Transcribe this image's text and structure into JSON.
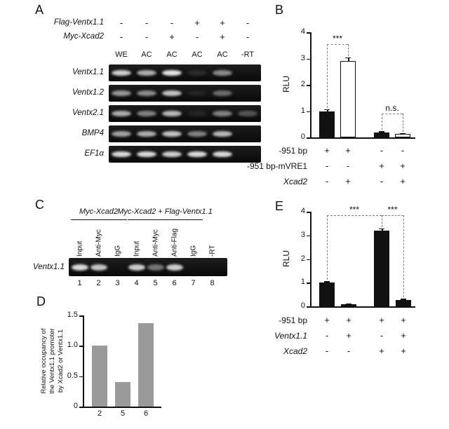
{
  "figure": {
    "panels": {
      "A": {
        "label": "A",
        "condition_rows": [
          {
            "label": "Flag-Ventx1.1",
            "values": [
              "-",
              "-",
              "-",
              "+",
              "+",
              "-"
            ]
          },
          {
            "label": "Myc-Xcad2",
            "values": [
              "-",
              "-",
              "+",
              "-",
              "+",
              "-"
            ]
          }
        ],
        "lane_labels": [
          "WE",
          "AC",
          "AC",
          "AC",
          "AC",
          "-RT"
        ],
        "gel_rows": [
          {
            "label": "Ventx1.1",
            "bands": [
              0.85,
              0.7,
              0.95,
              0.1,
              0.55,
              0
            ]
          },
          {
            "label": "Ventx1.2",
            "bands": [
              0.6,
              0.55,
              0.8,
              0.07,
              0.4,
              0
            ]
          },
          {
            "label": "Ventx2.1",
            "bands": [
              0.7,
              0.5,
              0.75,
              0.08,
              0.5,
              0.3
            ]
          },
          {
            "label": "BMP4",
            "bands": [
              0.65,
              0.7,
              0.8,
              0.5,
              0.75,
              0
            ]
          },
          {
            "label": "EF1α",
            "bands": [
              0.9,
              0.9,
              0.85,
              0.9,
              0.9,
              0
            ]
          }
        ]
      },
      "B": {
        "label": "B"
      },
      "C": {
        "label": "C",
        "groups": [
          {
            "label": "Myc-Xcad2",
            "from": 0,
            "to": 2
          },
          {
            "label": "Myc-Xcad2 + Flag-Ventx1.1",
            "from": 3,
            "to": 6
          }
        ],
        "lane_labels": [
          "Input",
          "Anti-Myc",
          "IgG",
          "Input",
          "Anti-Myc",
          "Anti-Flag",
          "IgG",
          "-RT"
        ],
        "gel_row": {
          "label": "Ventx1.1",
          "bands": [
            0.9,
            0.8,
            0,
            0.85,
            0.45,
            0.85,
            0,
            0
          ]
        },
        "lane_numbers": [
          "1",
          "2",
          "3",
          "4",
          "5",
          "6",
          "7",
          "8"
        ]
      },
      "D": {
        "label": "D"
      },
      "E": {
        "label": "E"
      }
    }
  },
  "chart_data": [
    {
      "id": "B",
      "type": "bar",
      "title": "",
      "ylabel": "RLU",
      "ylim": [
        0,
        4
      ],
      "yticks": [
        0,
        1,
        2,
        3,
        4
      ],
      "ytick_labels": [
        "0",
        "1",
        "2",
        "3",
        "4"
      ],
      "values": [
        1.0,
        2.9,
        0.2,
        0.13
      ],
      "errors": [
        0.08,
        0.15,
        0.04,
        0.03
      ],
      "bar_colors": [
        "#111111",
        "#ffffff",
        "#111111",
        "#ffffff"
      ],
      "bar_border": "#111111",
      "significance": [
        {
          "label": "***",
          "from": 0,
          "to": 1,
          "y": 3.55
        },
        {
          "label": "n.s.",
          "from": 2,
          "to": 3,
          "y": 0.9
        }
      ],
      "condition_rows": [
        {
          "label": "-951 bp",
          "italic": false,
          "values": [
            "+",
            "+",
            "-",
            "-"
          ]
        },
        {
          "label": "-951 bp-mVRE1",
          "italic": false,
          "values": [
            "-",
            "-",
            "+",
            "+"
          ]
        },
        {
          "label": "Xcad2",
          "italic": true,
          "values": [
            "-",
            "+",
            "-",
            "+"
          ]
        }
      ]
    },
    {
      "id": "D",
      "type": "bar",
      "title": "",
      "ylabel": "Relative occupancy of\nthe Ventx1.1 promoter\nby Xcad2 or Ventx1.1",
      "ylim": [
        0,
        1.5
      ],
      "yticks": [
        0,
        0.5,
        1.0,
        1.5
      ],
      "ytick_labels": [
        "0",
        "0.5",
        "1.0",
        "1.5"
      ],
      "categories": [
        "2",
        "5",
        "6"
      ],
      "values": [
        1.0,
        0.4,
        1.37
      ],
      "bar_colors": [
        "#9b9b9b",
        "#9b9b9b",
        "#9b9b9b"
      ],
      "bar_border": "#9b9b9b"
    },
    {
      "id": "E",
      "type": "bar",
      "title": "",
      "ylabel": "RLU",
      "ylim": [
        0,
        4
      ],
      "yticks": [
        0,
        1,
        2,
        3,
        4
      ],
      "ytick_labels": [
        "0",
        "1",
        "2",
        "3",
        "4"
      ],
      "values": [
        1.0,
        0.09,
        3.2,
        0.27
      ],
      "errors": [
        0.06,
        0.03,
        0.1,
        0.05
      ],
      "bar_colors": [
        "#111111",
        "#111111",
        "#111111",
        "#111111"
      ],
      "bar_border": "#111111",
      "significance": [
        {
          "label": "***",
          "from": 0,
          "to": 2,
          "y": 3.85
        },
        {
          "label": "***",
          "from": 2,
          "to": 3,
          "y": 3.85
        }
      ],
      "condition_rows": [
        {
          "label": "-951 bp",
          "italic": false,
          "values": [
            "+",
            "+",
            "+",
            "+"
          ]
        },
        {
          "label": "Ventx1.1",
          "italic": true,
          "values": [
            "-",
            "+",
            "-",
            "+"
          ]
        },
        {
          "label": "Xcad2",
          "italic": true,
          "values": [
            "-",
            "-",
            "+",
            "+"
          ]
        }
      ]
    }
  ]
}
